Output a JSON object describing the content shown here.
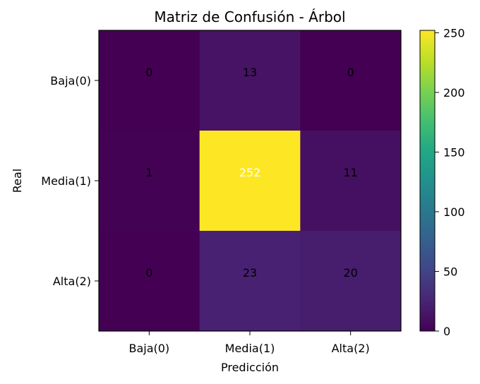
{
  "chart_data": {
    "type": "heatmap",
    "title": "Matriz de Confusión - Árbol",
    "xlabel": "Predicción",
    "ylabel": "Real",
    "x_categories": [
      "Baja(0)",
      "Media(1)",
      "Alta(2)"
    ],
    "y_categories": [
      "Baja(0)",
      "Media(1)",
      "Alta(2)"
    ],
    "values": [
      [
        0,
        13,
        0
      ],
      [
        1,
        252,
        11
      ],
      [
        0,
        23,
        20
      ]
    ],
    "colorbar": {
      "min": 0,
      "max": 252,
      "ticks": [
        0,
        50,
        100,
        150,
        200,
        250
      ],
      "colormap": "viridis"
    },
    "grid": false
  }
}
